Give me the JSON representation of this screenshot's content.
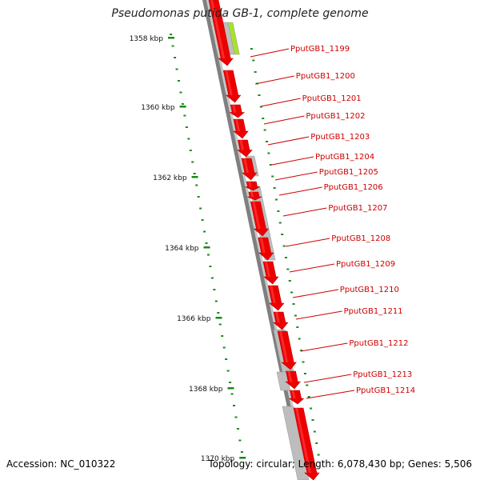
{
  "title": "Pseudomonas putida GB-1, complete genome",
  "footer": {
    "accession": "Accession: NC_010322",
    "summary": "Topology: circular; Length: 6,078,430 bp; Genes: 5,506"
  },
  "colors": {
    "gene": "#ee0000",
    "gene_light": "#ff4444",
    "gray_feature": "#bdbdbd",
    "green_feature": "#a6e22e",
    "backbone": "#7f7f7f",
    "tick": "#1a8a1a",
    "label": "#cc0000"
  },
  "kbp_ticks": [
    {
      "label": "1358 kbp"
    },
    {
      "label": "1360 kbp"
    },
    {
      "label": "1362 kbp"
    },
    {
      "label": "1364 kbp"
    },
    {
      "label": "1366 kbp"
    },
    {
      "label": "1368 kbp"
    },
    {
      "label": "1370 kbp"
    }
  ],
  "gene_labels": [
    "PputGB1_1199",
    "PputGB1_1200",
    "PputGB1_1201",
    "PputGB1_1202",
    "PputGB1_1203",
    "PputGB1_1204",
    "PputGB1_1205",
    "PputGB1_1206",
    "PputGB1_1207",
    "PputGB1_1208",
    "PputGB1_1209",
    "PputGB1_1210",
    "PputGB1_1211",
    "PputGB1_1212",
    "PputGB1_1213",
    "PputGB1_1214"
  ]
}
